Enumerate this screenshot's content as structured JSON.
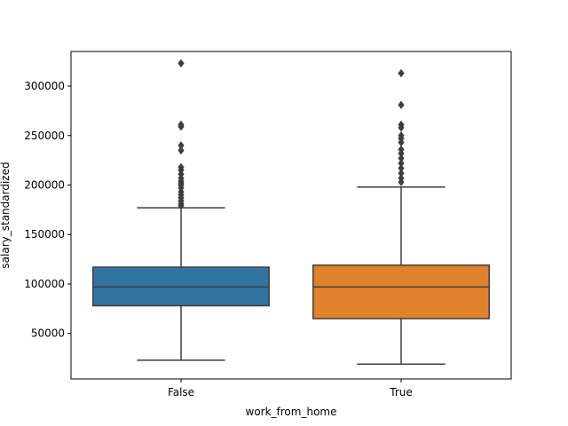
{
  "chart_data": {
    "type": "box",
    "title": "",
    "xlabel": "work_from_home",
    "ylabel": "salary_standardized",
    "categories": [
      "False",
      "True"
    ],
    "ylim": [
      4000,
      335000
    ],
    "yticks": [
      50000,
      100000,
      150000,
      200000,
      250000,
      300000
    ],
    "ytick_labels": [
      "50000",
      "100000",
      "150000",
      "200000",
      "250000",
      "300000"
    ],
    "grid": false,
    "boxes": [
      {
        "category": "False",
        "color": "#3274a1",
        "whisker_low": 23000,
        "q1": 78000,
        "median": 97000,
        "q3": 117000,
        "whisker_high": 177000,
        "outliers": [
          179000,
          181000,
          184000,
          187000,
          190000,
          193000,
          197000,
          200000,
          202000,
          204000,
          207000,
          211000,
          215000,
          218000,
          235000,
          240000,
          259000,
          261000,
          323000
        ]
      },
      {
        "category": "True",
        "color": "#e1812c",
        "whisker_low": 19000,
        "q1": 65000,
        "median": 97000,
        "q3": 119000,
        "whisker_high": 198000,
        "outliers": [
          203000,
          207000,
          212000,
          217000,
          222000,
          227000,
          232000,
          236000,
          243000,
          247000,
          250000,
          258000,
          261000,
          281000,
          313000
        ]
      }
    ],
    "line_color": "#3d3d3d"
  }
}
